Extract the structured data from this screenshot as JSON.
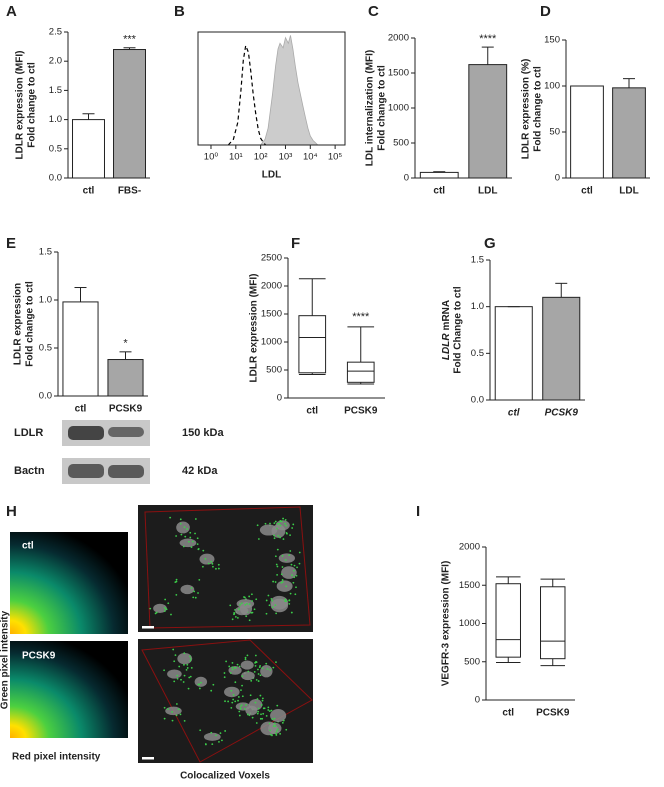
{
  "chart_data": [
    {
      "type": "bar",
      "panel": "A",
      "ylabel": [
        "LDLR expression (MFI)",
        "Fold change to ctl"
      ],
      "categories": [
        "ctl",
        "FBS-"
      ],
      "values": [
        1.0,
        2.2
      ],
      "errors": [
        0.1,
        0.03
      ],
      "colors": [
        "#ffffff",
        "#a6a6a6"
      ],
      "ylim": [
        0,
        2.5
      ],
      "yticks": [
        {
          "value": 0,
          "label": "0.0"
        },
        0.5,
        {
          "value": 1,
          "label": "1.0"
        },
        1.5,
        {
          "value": 2,
          "label": "2.0"
        },
        2.5
      ],
      "annotation": "***"
    },
    {
      "type": "density",
      "panel": "B",
      "xlabel": "LDL",
      "xscale": "log",
      "xlim": [
        0.3,
        250000
      ],
      "xticks": [
        {
          "value": 1,
          "label": "10⁰"
        },
        {
          "value": 10,
          "label": "10¹"
        },
        {
          "value": 100,
          "label": "10²"
        },
        {
          "value": 1000,
          "label": "10³"
        },
        {
          "value": 10000,
          "label": "10⁴"
        },
        {
          "value": 100000,
          "label": "10⁵"
        }
      ],
      "ylim": [
        0,
        100
      ],
      "series": [
        {
          "style": "dashed",
          "color": "#000000",
          "x": [
            5,
            8,
            12,
            16,
            20,
            25,
            32,
            40,
            50,
            63,
            80,
            100,
            130,
            160
          ],
          "values": [
            0,
            5,
            20,
            48,
            75,
            88,
            82,
            65,
            45,
            28,
            14,
            6,
            2,
            0
          ]
        },
        {
          "style": "filled",
          "color": "#cccccc",
          "x": [
            100,
            150,
            200,
            300,
            400,
            500,
            600,
            800,
            1000,
            1300,
            1600,
            2000,
            2500,
            3200,
            4000,
            5000,
            6300,
            8000,
            10000,
            13000,
            16000,
            20000
          ],
          "values": [
            0,
            5,
            15,
            45,
            70,
            85,
            90,
            86,
            95,
            90,
            97,
            85,
            70,
            55,
            45,
            35,
            25,
            15,
            8,
            4,
            2,
            0
          ]
        }
      ]
    },
    {
      "type": "bar",
      "panel": "C",
      "ylabel": [
        "LDL internalization (MFI)",
        "Fold change to ctl"
      ],
      "categories": [
        "ctl",
        "LDL"
      ],
      "values": [
        80,
        1620
      ],
      "errors": [
        10,
        250
      ],
      "colors": [
        "#ffffff",
        "#a6a6a6"
      ],
      "ylim": [
        0,
        2000
      ],
      "yticks": [
        0,
        500,
        1000,
        1500,
        2000
      ],
      "annotation": "****"
    },
    {
      "type": "bar",
      "panel": "D",
      "ylabel": [
        "LDLR expression (%)",
        "Fold change to ctl"
      ],
      "categories": [
        "ctl",
        "LDL"
      ],
      "values": [
        100,
        98
      ],
      "errors": [
        0,
        10
      ],
      "colors": [
        "#ffffff",
        "#a6a6a6"
      ],
      "ylim": [
        0,
        150
      ],
      "yticks": [
        0,
        50,
        100,
        150
      ]
    },
    {
      "type": "bar",
      "panel": "E",
      "ylabel": [
        "LDLR expression",
        "Fold change to ctl"
      ],
      "categories": [
        "ctl",
        "PCSK9"
      ],
      "values": [
        0.98,
        0.38
      ],
      "errors": [
        0.15,
        0.08
      ],
      "colors": [
        "#ffffff",
        "#a6a6a6"
      ],
      "ylim": [
        0,
        1.5
      ],
      "yticks": [
        {
          "value": 0,
          "label": "0.0"
        },
        0.5,
        {
          "value": 1,
          "label": "1.0"
        },
        1.5
      ],
      "annotation": "*",
      "blot": {
        "rows": [
          {
            "label": "LDLR",
            "size": "150 kDa"
          },
          {
            "label": "Bactn",
            "size": "42 kDa"
          }
        ]
      }
    },
    {
      "type": "box",
      "panel": "F",
      "ylabel": [
        "LDLR expression (MFI)"
      ],
      "categories": [
        "ctl",
        "PCSK9"
      ],
      "boxes": [
        {
          "min": 420,
          "q1": 450,
          "median": 1080,
          "q3": 1470,
          "max": 2130
        },
        {
          "min": 250,
          "q1": 280,
          "median": 480,
          "q3": 640,
          "max": 1270
        }
      ],
      "ylim": [
        0,
        2500
      ],
      "yticks": [
        0,
        500,
        1000,
        1500,
        2000,
        2500
      ],
      "annotation": "****"
    },
    {
      "type": "bar",
      "panel": "G",
      "ylabel": [
        [
          "LDLR",
          "mRNA"
        ],
        "Fold Change to ctl"
      ],
      "italic_categories": true,
      "categories": [
        "ctl",
        "PCSK9"
      ],
      "values": [
        1.0,
        1.1
      ],
      "errors": [
        0,
        0.15
      ],
      "colors": [
        "#ffffff",
        "#a6a6a6"
      ],
      "ylim": [
        0,
        1.5
      ],
      "yticks": [
        {
          "value": 0,
          "label": "0.0"
        },
        0.5,
        {
          "value": 1,
          "label": "1.0"
        },
        1.5
      ]
    },
    {
      "type": "box",
      "panel": "I",
      "ylabel": [
        "VEGFR-3 expression (MFI)"
      ],
      "categories": [
        "ctl",
        "PCSK9"
      ],
      "boxes": [
        {
          "min": 490,
          "q1": 560,
          "median": 790,
          "q3": 1520,
          "max": 1610
        },
        {
          "min": 450,
          "q1": 540,
          "median": 770,
          "q3": 1480,
          "max": 1580
        }
      ],
      "ylim": [
        0,
        2000
      ],
      "yticks": [
        0,
        500,
        1000,
        1500,
        2000
      ]
    }
  ],
  "panel_h": {
    "letter": "H",
    "plots": [
      "ctl",
      "PCSK9"
    ],
    "ylabel": "Green pixel intensity",
    "xlabel": "Red pixel intensity",
    "caption": "Colocalized Voxels"
  }
}
